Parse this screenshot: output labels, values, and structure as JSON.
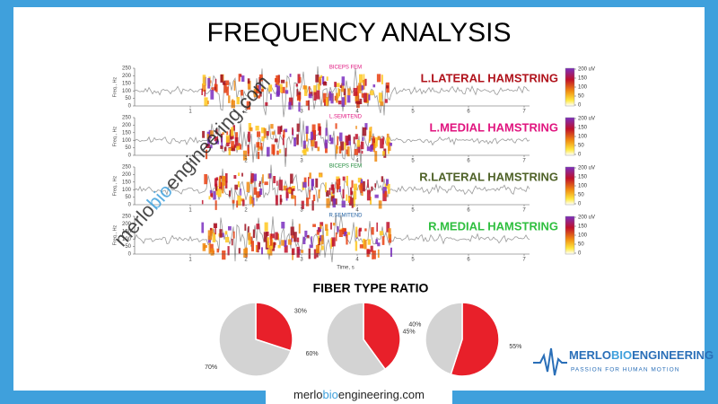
{
  "title": "FREQUENCY ANALYSIS",
  "spectrograms": {
    "panels": [
      {
        "muscle": "L.LATERAL HAMSTRING",
        "tag": "BICEPS FEM",
        "color": "#b0121b",
        "tag_color": "#e0157f"
      },
      {
        "muscle": "L.MEDIAL HAMSTRING",
        "tag": "L.SEMITEND",
        "color": "#e0157f",
        "tag_color": "#e0157f"
      },
      {
        "muscle": "R.LATERAL HAMSTRING",
        "tag": "BICEPS FEM",
        "color": "#4f6228",
        "tag_color": "#1f8a3a"
      },
      {
        "muscle": "R.MEDIAL HAMSTRING",
        "tag": "R.SEMITEND",
        "color": "#2fbf3f",
        "tag_color": "#1f5fa0"
      }
    ],
    "ylabel": "Freq., Hz",
    "xlabel": "Time, s",
    "yticks": [
      0,
      50,
      100,
      150,
      200,
      250
    ],
    "xticks": [
      1,
      2,
      3,
      4,
      5,
      6,
      7
    ],
    "colorbar_ticks": [
      {
        "value": 200,
        "label": "200 uV"
      },
      150,
      100,
      50,
      0
    ]
  },
  "watermark": {
    "a": "merlo",
    "b": "bio",
    "c": "engineering.com"
  },
  "fiber_type_title": "FIBER TYPE RATIO",
  "chart_data": [
    {
      "type": "pie",
      "values": [
        30,
        70
      ],
      "value_labels": [
        "30%",
        "70%"
      ],
      "colors": [
        "#e8202a",
        "#d3d3d3"
      ]
    },
    {
      "type": "pie",
      "values": [
        40,
        60
      ],
      "value_labels": [
        "40%",
        "60%"
      ],
      "colors": [
        "#e8202a",
        "#d3d3d3"
      ]
    },
    {
      "type": "pie",
      "values": [
        55,
        45
      ],
      "value_labels": [
        "55%",
        "45%"
      ],
      "colors": [
        "#e8202a",
        "#d3d3d3"
      ]
    }
  ],
  "logo": {
    "a": "MERLO",
    "b": "BIO",
    "c": "ENGINEERING",
    "tagline": "PASSION FOR HUMAN MOTION"
  },
  "footer": {
    "a": "merlo",
    "b": "bio",
    "c": "engineering.com"
  }
}
